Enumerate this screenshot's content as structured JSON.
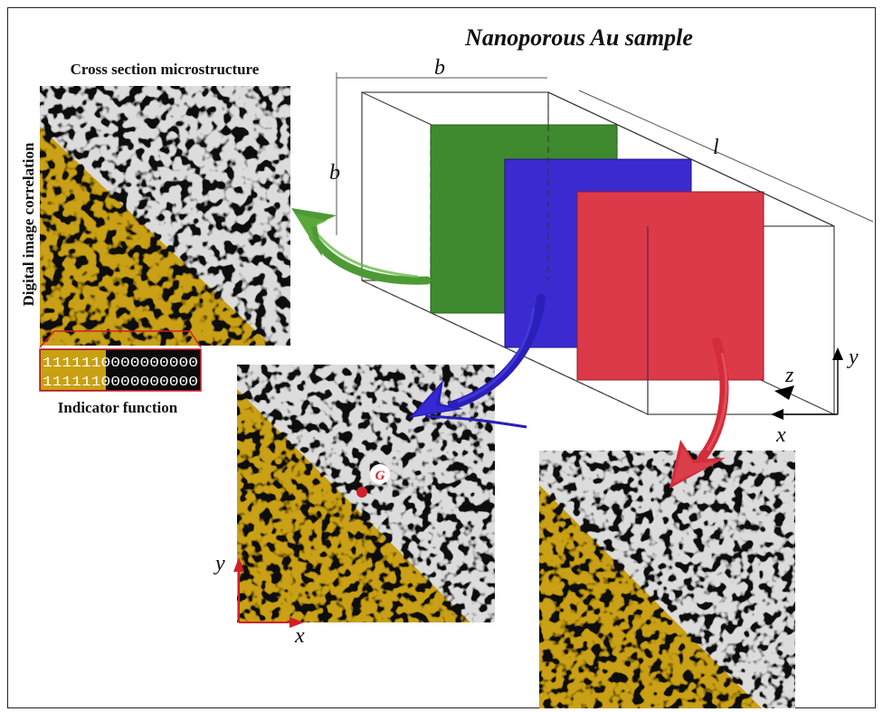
{
  "title": "Nanoporous Au sample",
  "labels": {
    "cross_section": "Cross section microstructure",
    "dic": "Digital image correlation",
    "indicator": "Indicator function",
    "bit_row_1": "1111110000000000",
    "bit_row_2": "1111110000000000",
    "dim_b_top": "b",
    "dim_b_side": "b",
    "dim_l": "l",
    "axis_x_main": "x",
    "axis_y_main": "y",
    "axis_z_main": "z",
    "axis_x_small": "x",
    "axis_y_small": "y",
    "point_g": "G"
  },
  "colors": {
    "green_slice": "#3f8a2e",
    "blue_slice": "#3a2ad0",
    "red_slice": "#dc3a48",
    "gold_phase": "#c9a012",
    "pore_dark": "#111111",
    "solid_light": "#d9d9d9",
    "marker_red": "#d21f2a"
  },
  "icons": [
    "green-arrow-icon",
    "blue-arrow-icon",
    "red-arrow-icon",
    "axis-arrow-icon"
  ]
}
